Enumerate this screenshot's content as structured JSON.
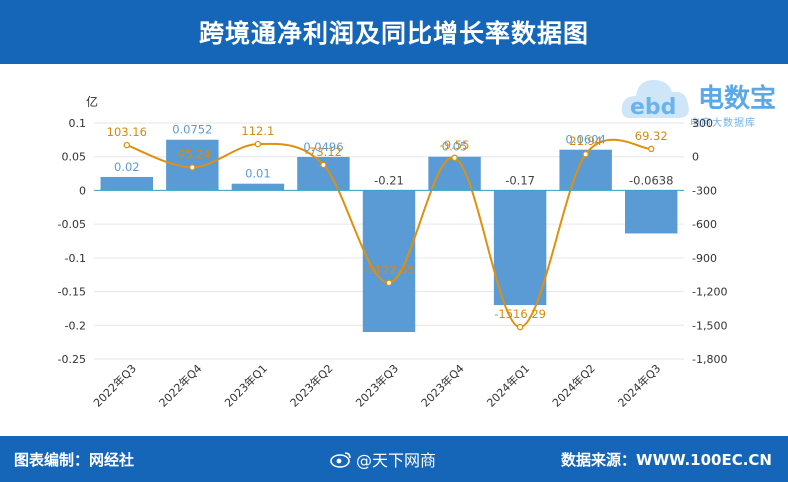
{
  "header": {
    "title": "跨境通净利润及同比增长率数据图"
  },
  "footer": {
    "left": "图表编制：网经社",
    "mid": "@天下网商",
    "right": "数据来源：WWW.100EC.CN"
  },
  "logo": {
    "brand": "电数宝",
    "sub": "电商大数据库",
    "mark": "ebd"
  },
  "colors": {
    "bar": "#5b9bd5",
    "line": "#e0900c",
    "header": "#1565b8",
    "left_label": "#5b9bd5",
    "right_label": "#d68a0e"
  },
  "chart_data": {
    "type": "bar",
    "unit_left": "亿",
    "categories": [
      "2022年Q3",
      "2022年Q4",
      "2023年Q1",
      "2023年Q2",
      "2023年Q3",
      "2023年Q4",
      "2024年Q1",
      "2024年Q2",
      "2024年Q3"
    ],
    "series": [
      {
        "type": "bar",
        "axis": "left",
        "values": [
          0.02,
          0.0752,
          0.01,
          0.0496,
          -0.21,
          0.05,
          -0.17,
          0.0604,
          -0.0638
        ],
        "labels": [
          "0.02",
          "0.0752",
          "0.01",
          "0.0496",
          "-0.21",
          "0.05",
          "-0.17",
          "0.0604",
          "-0.0638"
        ]
      },
      {
        "type": "line",
        "axis": "right",
        "values": [
          103.16,
          -95.24,
          112.1,
          -73.12,
          -1122.65,
          -9.55,
          -1516.29,
          21.94,
          69.32
        ],
        "labels": [
          "103.16",
          "-95.24",
          "112.1",
          "-73.12",
          "-1122.65",
          "-9.55",
          "-1516.29",
          "21.94",
          "69.32"
        ]
      }
    ],
    "y_left": {
      "min": -0.25,
      "max": 0.1,
      "ticks": [
        "0.1",
        "0.05",
        "0",
        "-0.05",
        "-0.1",
        "-0.15",
        "-0.2",
        "-0.25"
      ]
    },
    "y_right": {
      "min": -1800,
      "max": 300,
      "ticks": [
        "300",
        "0",
        "-300",
        "-600",
        "-900",
        "-1,200",
        "-1,500",
        "-1,800"
      ]
    },
    "grid": true
  }
}
